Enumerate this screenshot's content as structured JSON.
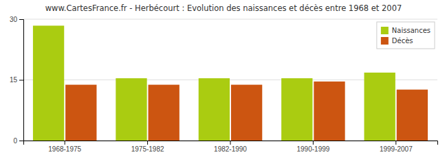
{
  "chart_data": {
    "type": "bar",
    "title": "www.CartesFrance.fr - Herbécourt : Evolution des naissances et décès entre 1968 et 2007",
    "categories": [
      "1968-1975",
      "1975-1982",
      "1982-1990",
      "1990-1999",
      "1999-2007"
    ],
    "series": [
      {
        "name": "Naissances",
        "color": "#aacc11",
        "values": [
          28.4,
          15.4,
          15.4,
          15.4,
          16.8
        ]
      },
      {
        "name": "Décès",
        "color": "#cc5511",
        "values": [
          13.8,
          13.8,
          13.8,
          14.6,
          12.6
        ]
      }
    ],
    "ylim": [
      0,
      30
    ],
    "yticks": [
      0,
      15,
      30
    ],
    "grid": true,
    "legend": "upper right"
  }
}
